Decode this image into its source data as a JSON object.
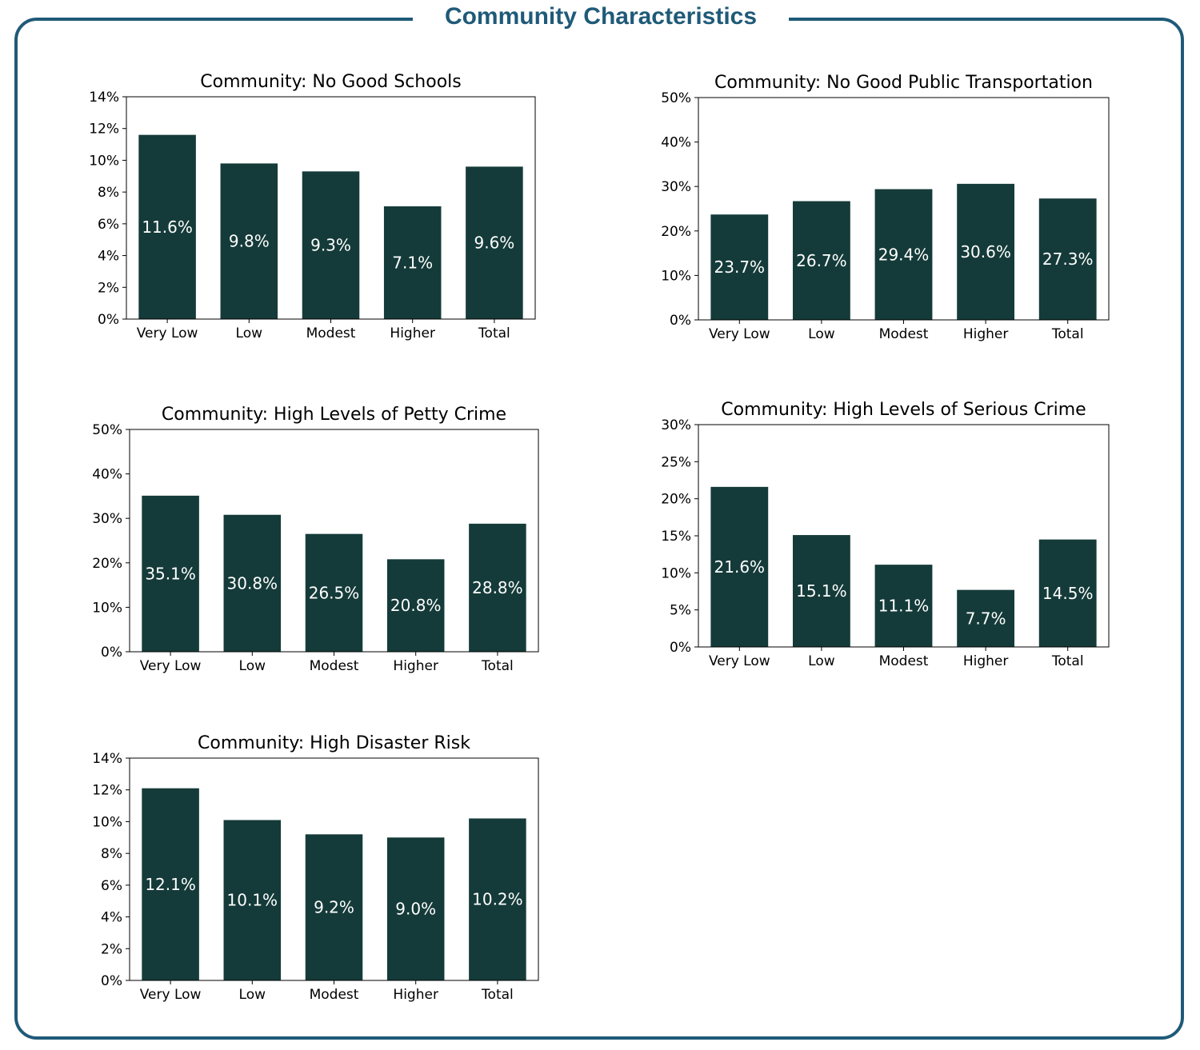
{
  "page_title": "Community Characteristics",
  "colors": {
    "frame": "#1f5a78",
    "bar": "#143b39"
  },
  "chart_data": [
    {
      "type": "bar",
      "title": "Community: No Good Schools",
      "categories": [
        "Very Low",
        "Low",
        "Modest",
        "Higher",
        "Total"
      ],
      "values": [
        11.6,
        9.8,
        9.3,
        7.1,
        9.6
      ],
      "data_labels": [
        "11.6%",
        "9.8%",
        "9.3%",
        "7.1%",
        "9.6%"
      ],
      "ylim": [
        0,
        14
      ],
      "yticks": [
        "0%",
        "2%",
        "4%",
        "6%",
        "8%",
        "10%",
        "12%",
        "14%"
      ]
    },
    {
      "type": "bar",
      "title": "Community: No Good Public Transportation",
      "categories": [
        "Very Low",
        "Low",
        "Modest",
        "Higher",
        "Total"
      ],
      "values": [
        23.7,
        26.7,
        29.4,
        30.6,
        27.3
      ],
      "data_labels": [
        "23.7%",
        "26.7%",
        "29.4%",
        "30.6%",
        "27.3%"
      ],
      "ylim": [
        0,
        50
      ],
      "yticks": [
        "0%",
        "10%",
        "20%",
        "30%",
        "40%",
        "50%"
      ]
    },
    {
      "type": "bar",
      "title": "Community: High Levels of Petty Crime",
      "categories": [
        "Very Low",
        "Low",
        "Modest",
        "Higher",
        "Total"
      ],
      "values": [
        35.1,
        30.8,
        26.5,
        20.8,
        28.8
      ],
      "data_labels": [
        "35.1%",
        "30.8%",
        "26.5%",
        "20.8%",
        "28.8%"
      ],
      "ylim": [
        0,
        50
      ],
      "yticks": [
        "0%",
        "10%",
        "20%",
        "30%",
        "40%",
        "50%"
      ]
    },
    {
      "type": "bar",
      "title": "Community: High Levels of Serious Crime",
      "categories": [
        "Very Low",
        "Low",
        "Modest",
        "Higher",
        "Total"
      ],
      "values": [
        21.6,
        15.1,
        11.1,
        7.7,
        14.5
      ],
      "data_labels": [
        "21.6%",
        "15.1%",
        "11.1%",
        "7.7%",
        "14.5%"
      ],
      "ylim": [
        0,
        30
      ],
      "yticks": [
        "0%",
        "5%",
        "10%",
        "15%",
        "20%",
        "25%",
        "30%"
      ]
    },
    {
      "type": "bar",
      "title": "Community: High Disaster Risk",
      "categories": [
        "Very Low",
        "Low",
        "Modest",
        "Higher",
        "Total"
      ],
      "values": [
        12.1,
        10.1,
        9.2,
        9.0,
        10.2
      ],
      "data_labels": [
        "12.1%",
        "10.1%",
        "9.2%",
        "9.0%",
        "10.2%"
      ],
      "ylim": [
        0,
        14
      ],
      "yticks": [
        "0%",
        "2%",
        "4%",
        "6%",
        "8%",
        "10%",
        "12%",
        "14%"
      ]
    }
  ]
}
